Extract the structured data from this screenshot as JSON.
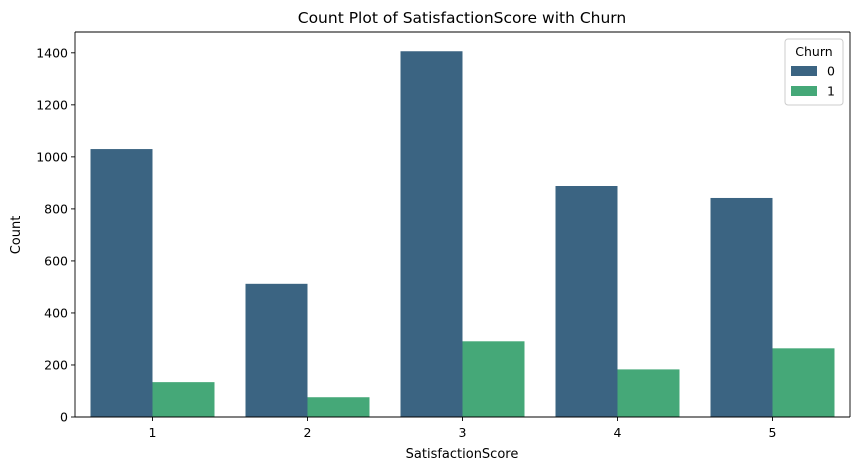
{
  "chart_data": {
    "type": "bar",
    "title": "Count Plot of SatisfactionScore with Churn",
    "xlabel": "SatisfactionScore",
    "ylabel": "Count",
    "categories": [
      "1",
      "2",
      "3",
      "4",
      "5"
    ],
    "ylim": [
      0,
      1480
    ],
    "yticks": [
      0,
      200,
      400,
      600,
      800,
      1000,
      1200,
      1400
    ],
    "grid": false,
    "legend": {
      "title": "Churn",
      "placement": "top-right"
    },
    "series": [
      {
        "name": "0",
        "color": "#3b6482",
        "values": [
          1030,
          512,
          1406,
          888,
          842
        ]
      },
      {
        "name": "1",
        "color": "#45a878",
        "values": [
          134,
          76,
          291,
          183,
          264
        ]
      }
    ]
  }
}
